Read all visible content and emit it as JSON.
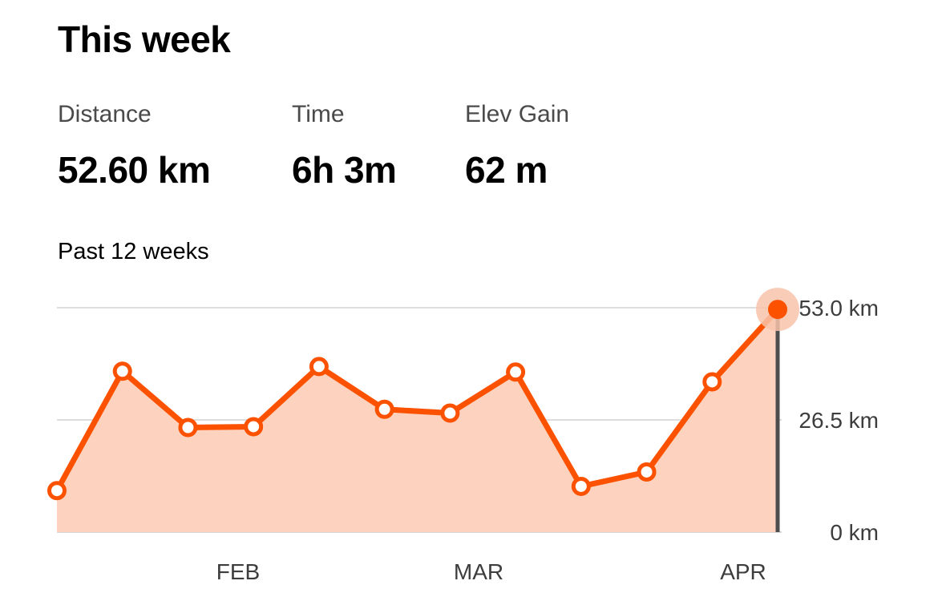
{
  "header": {
    "title": "This week"
  },
  "stats": {
    "distance": {
      "label": "Distance",
      "value": "52.60 km"
    },
    "time": {
      "label": "Time",
      "value": "6h 3m"
    },
    "elev_gain": {
      "label": "Elev Gain",
      "value": "62 m"
    }
  },
  "chart_section": {
    "subtitle": "Past 12 weeks"
  },
  "colors": {
    "line": "#fc5200",
    "fill": "#fdd3bf",
    "gridline": "#dddddd",
    "cursor": "#4d4d4d",
    "highlight_halo": "#f8c3ab"
  },
  "chart_data": {
    "type": "area",
    "x_points": 12,
    "x_tick_labels": [
      "FEB",
      "MAR",
      "APR"
    ],
    "y_tick_labels": [
      "53.0 km",
      "26.5 km",
      "0 km"
    ],
    "ylim": [
      0,
      53
    ],
    "y_ticks": [
      53,
      26.5,
      0
    ],
    "grid": true,
    "series": [
      {
        "values": [
          9.8,
          38.0,
          24.7,
          24.9,
          39.1,
          29.0,
          28.1,
          37.8,
          10.8,
          14.2,
          35.5,
          52.6
        ]
      }
    ],
    "highlighted_index": 11
  }
}
